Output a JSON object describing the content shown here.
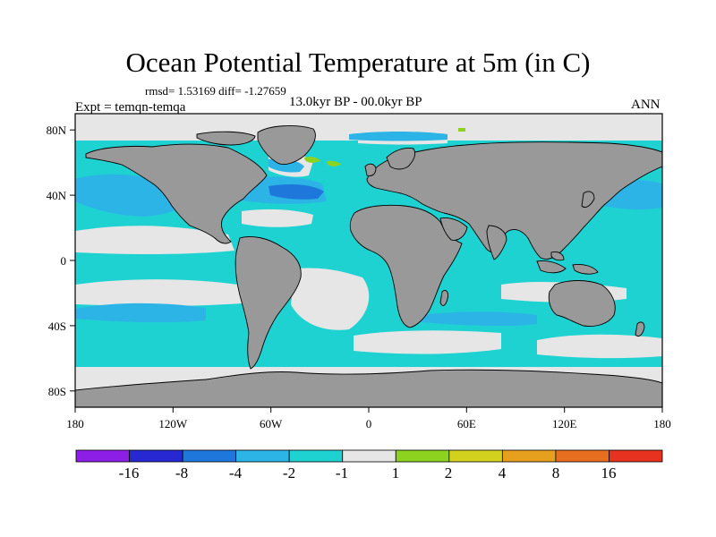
{
  "title": "Ocean Potential Temperature at 5m (in C)",
  "stats_text": "rmsd= 1.53169 diff= -1.27659",
  "experiment_text": "Expt = temqn-temqa",
  "period_text": "13.0kyr BP - 00.0kyr BP",
  "season_text": "ANN",
  "map": {
    "projection": "cylindrical-equidistant",
    "lon_range": [
      -180,
      180
    ],
    "lat_range": [
      -90,
      90
    ],
    "land_color": "#999999",
    "no_change_color": "#e6e6e6",
    "coastline_color": "#000000",
    "x_tick_labels": [
      "180",
      "120W",
      "60W",
      "0",
      "60E",
      "120E",
      "180"
    ],
    "y_tick_labels": [
      "80N",
      "40N",
      "0",
      "40S",
      "80S"
    ]
  },
  "colorbar": {
    "colors": [
      "#8c1ee6",
      "#2828d2",
      "#1e78dc",
      "#2db4e6",
      "#1ed2d2",
      "#e6e6e6",
      "#8cd21e",
      "#d2d21e",
      "#e6a01e",
      "#e66e1e",
      "#e6321e"
    ],
    "labels": [
      "-16",
      "-8",
      "-4",
      "-2",
      "-1",
      "1",
      "2",
      "4",
      "8",
      "16"
    ]
  }
}
